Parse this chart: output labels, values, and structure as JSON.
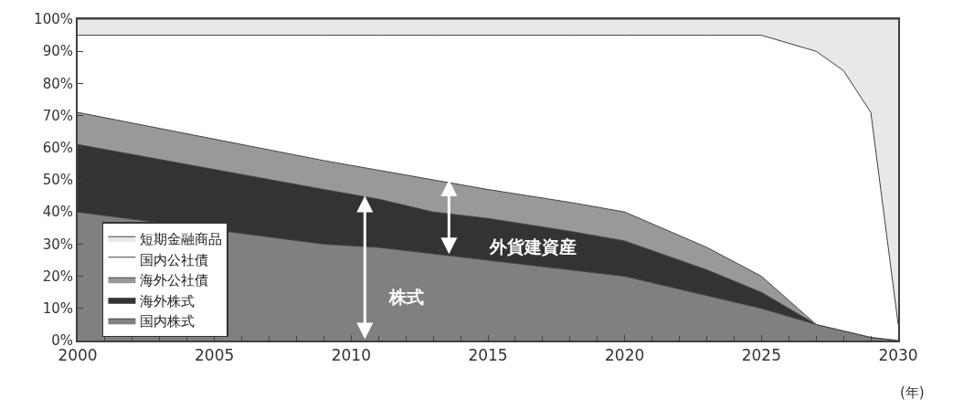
{
  "chart_data": {
    "type": "area",
    "stacked": true,
    "xlabel": "(年)",
    "x": [
      2000,
      2009,
      2011,
      2013,
      2015,
      2018,
      2020,
      2023,
      2025,
      2027,
      2028,
      2029,
      2030
    ],
    "series": [
      {
        "name": "国内株式",
        "color": "#808080",
        "values": [
          40,
          30,
          29,
          27,
          25,
          22,
          20,
          14,
          10,
          5,
          3,
          1,
          0
        ]
      },
      {
        "name": "海外株式",
        "color": "#333333",
        "values": [
          21,
          17,
          15,
          13,
          13,
          12,
          11,
          8,
          5,
          0,
          0,
          0,
          0
        ]
      },
      {
        "name": "海外公社債",
        "color": "#999999",
        "values": [
          10,
          9,
          9,
          10,
          9,
          9,
          9,
          7,
          5,
          0,
          0,
          0,
          0
        ]
      },
      {
        "name": "国内公社債",
        "color": "#ffffff",
        "values": [
          24,
          39,
          42,
          45,
          48,
          52,
          55,
          66,
          75,
          85,
          81,
          70,
          5
        ]
      },
      {
        "name": "短期金融商品",
        "color": "#e8e8e8",
        "values": [
          5,
          5,
          5,
          5,
          5,
          5,
          5,
          5,
          5,
          10,
          16,
          29,
          95
        ]
      }
    ],
    "xlim": [
      2000,
      2030
    ],
    "xticks": [
      2000,
      2005,
      2010,
      2015,
      2020,
      2025,
      2030
    ],
    "ylim": [
      0,
      100
    ],
    "yticks": [
      {
        "value": 0,
        "label": "0%"
      },
      {
        "value": 10,
        "label": "10%"
      },
      {
        "value": 20,
        "label": "20%"
      },
      {
        "value": 30,
        "label": "30%"
      },
      {
        "value": 40,
        "label": "40%"
      },
      {
        "value": 50,
        "label": "50%"
      },
      {
        "value": 60,
        "label": "60%"
      },
      {
        "value": 70,
        "label": "70%"
      },
      {
        "value": 80,
        "label": "80%"
      },
      {
        "value": 90,
        "label": "90%"
      },
      {
        "value": 100,
        "label": "100%"
      }
    ],
    "annotations": [
      "外貨建資産",
      "株式"
    ],
    "legend": "bottom left"
  }
}
